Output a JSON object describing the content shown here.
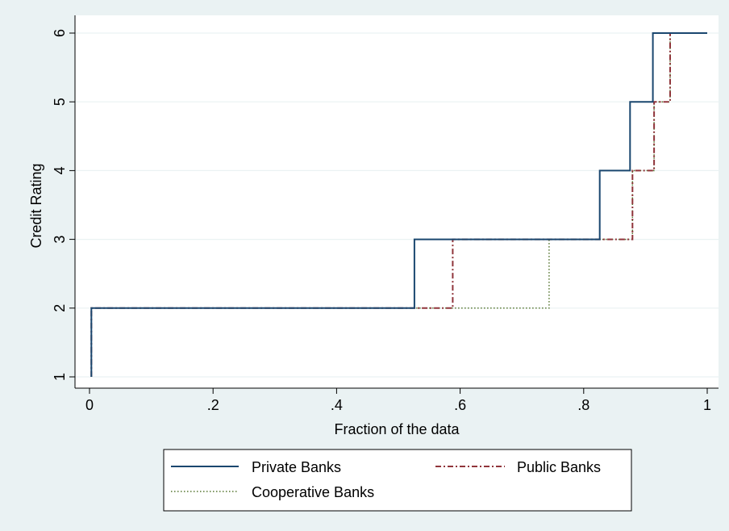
{
  "chart_data": {
    "type": "line",
    "step": true,
    "title": "",
    "xlabel": "Fraction of the data",
    "ylabel": "Credit Rating",
    "xlim": [
      0,
      1
    ],
    "ylim": [
      1,
      6
    ],
    "x_ticks": [
      {
        "value": 0,
        "label": "0"
      },
      {
        "value": 0.2,
        "label": ".2"
      },
      {
        "value": 0.4,
        "label": ".4"
      },
      {
        "value": 0.6,
        "label": ".6"
      },
      {
        "value": 0.8,
        "label": ".8"
      },
      {
        "value": 1,
        "label": "1"
      }
    ],
    "y_ticks": [
      {
        "value": 1,
        "label": "1"
      },
      {
        "value": 2,
        "label": "2"
      },
      {
        "value": 3,
        "label": "3"
      },
      {
        "value": 4,
        "label": "4"
      },
      {
        "value": 5,
        "label": "5"
      },
      {
        "value": 6,
        "label": "6"
      }
    ],
    "grid": true,
    "legend_position": "bottom",
    "series": [
      {
        "name": "Private Banks",
        "color": "#1a476f",
        "dash": "solid",
        "points": [
          [
            0.003,
            1
          ],
          [
            0.003,
            2
          ],
          [
            0.526,
            2
          ],
          [
            0.526,
            3
          ],
          [
            0.826,
            3
          ],
          [
            0.826,
            4
          ],
          [
            0.875,
            4
          ],
          [
            0.875,
            5
          ],
          [
            0.912,
            5
          ],
          [
            0.912,
            6
          ],
          [
            1,
            6
          ]
        ]
      },
      {
        "name": "Public Banks",
        "color": "#90353b",
        "dash": "dashdot",
        "points": [
          [
            0.003,
            1
          ],
          [
            0.003,
            2
          ],
          [
            0.588,
            2
          ],
          [
            0.588,
            3
          ],
          [
            0.879,
            3
          ],
          [
            0.879,
            4
          ],
          [
            0.914,
            4
          ],
          [
            0.914,
            5
          ],
          [
            0.94,
            5
          ],
          [
            0.94,
            6
          ],
          [
            1,
            6
          ]
        ]
      },
      {
        "name": "Cooperative Banks",
        "color": "#55752f",
        "dash": "dotted",
        "points": [
          [
            0.003,
            1
          ],
          [
            0.003,
            2
          ],
          [
            0.744,
            2
          ],
          [
            0.744,
            3
          ],
          [
            0.879,
            3
          ],
          [
            0.879,
            4
          ],
          [
            0.914,
            4
          ],
          [
            0.914,
            5
          ],
          [
            0.94,
            5
          ],
          [
            0.94,
            6
          ],
          [
            1,
            6
          ]
        ]
      }
    ]
  }
}
